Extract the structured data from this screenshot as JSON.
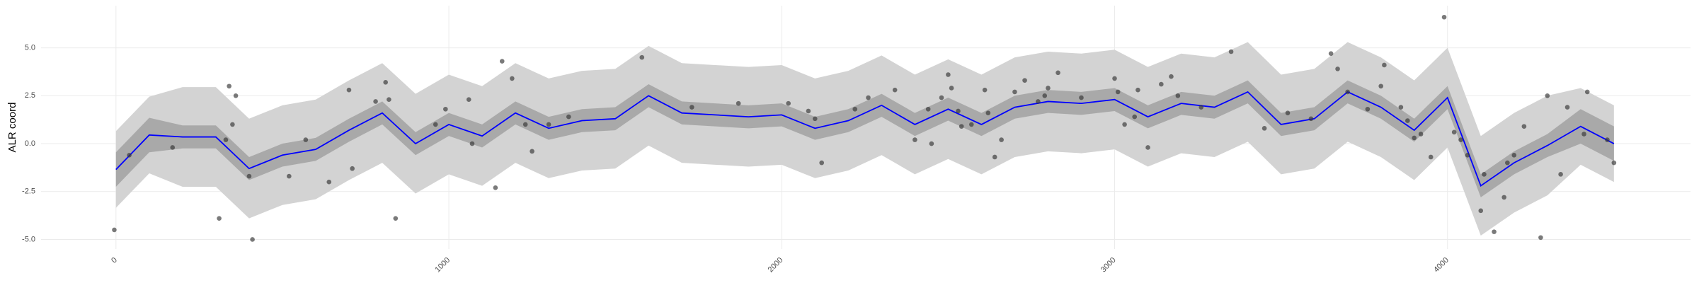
{
  "chart_data": {
    "type": "line",
    "y_label": "ALR coord",
    "xlim": [
      -225,
      4730
    ],
    "ylim": [
      -5.5,
      7.2
    ],
    "xticks": [
      0,
      1000,
      2000,
      3000,
      4000
    ],
    "yticks": [
      {
        "value": -5,
        "label": "-5.0"
      },
      {
        "value": -2.5,
        "label": "-2.5"
      },
      {
        "value": 0,
        "label": "0.0"
      },
      {
        "value": 2.5,
        "label": "2.5"
      },
      {
        "value": 5,
        "label": "5.0"
      }
    ],
    "grid": true,
    "x": [
      0,
      100,
      200,
      300,
      400,
      500,
      600,
      700,
      800,
      900,
      1000,
      1100,
      1200,
      1300,
      1400,
      1500,
      1600,
      1700,
      1800,
      1900,
      2000,
      2100,
      2200,
      2300,
      2400,
      2500,
      2600,
      2700,
      2800,
      2900,
      3000,
      3100,
      3200,
      3300,
      3400,
      3500,
      3600,
      3700,
      3800,
      3900,
      4000,
      4100,
      4200,
      4300,
      4400,
      4500
    ],
    "mean": {
      "color": "#0000ff",
      "values": [
        -1.35,
        0.45,
        0.35,
        0.35,
        -1.3,
        -0.6,
        -0.3,
        0.7,
        1.6,
        0.0,
        1.0,
        0.4,
        1.6,
        0.8,
        1.2,
        1.3,
        2.5,
        1.6,
        1.5,
        1.4,
        1.5,
        0.8,
        1.2,
        2.0,
        1.0,
        1.8,
        1.0,
        1.9,
        2.2,
        2.1,
        2.3,
        1.4,
        2.1,
        1.9,
        2.7,
        1.0,
        1.3,
        2.7,
        1.9,
        0.7,
        2.4,
        -2.2,
        -1.0,
        -0.1,
        0.9,
        0.0
      ]
    },
    "inner_band": {
      "color": "#a9a9a9",
      "lower": [
        -2.25,
        -0.45,
        -0.25,
        -0.25,
        -1.9,
        -1.2,
        -0.9,
        0.1,
        1.0,
        -0.6,
        0.4,
        -0.2,
        1.0,
        0.2,
        0.6,
        0.7,
        1.9,
        1.0,
        0.9,
        0.8,
        0.9,
        0.2,
        0.6,
        1.4,
        0.4,
        1.2,
        0.4,
        1.3,
        1.6,
        1.5,
        1.7,
        0.8,
        1.5,
        1.3,
        2.1,
        0.4,
        0.7,
        2.1,
        1.3,
        0.1,
        1.8,
        -2.8,
        -1.6,
        -0.7,
        0.0,
        -0.9
      ],
      "upper": [
        -0.45,
        1.35,
        0.95,
        0.95,
        -0.7,
        0.0,
        0.3,
        1.3,
        2.2,
        0.6,
        1.6,
        1.0,
        2.2,
        1.4,
        1.8,
        1.9,
        3.1,
        2.2,
        2.1,
        2.0,
        2.1,
        1.4,
        1.8,
        2.6,
        1.6,
        2.4,
        1.6,
        2.5,
        2.8,
        2.7,
        2.9,
        2.0,
        2.7,
        2.5,
        3.3,
        1.6,
        1.9,
        3.3,
        2.5,
        1.3,
        3.0,
        -1.6,
        -0.4,
        0.5,
        1.8,
        0.9
      ]
    },
    "outer_band": {
      "color": "#d3d3d3",
      "lower": [
        -3.35,
        -1.55,
        -2.25,
        -2.25,
        -3.9,
        -3.2,
        -2.9,
        -1.9,
        -1.0,
        -2.6,
        -1.6,
        -2.2,
        -1.0,
        -1.8,
        -1.4,
        -1.3,
        -0.1,
        -1.0,
        -1.1,
        -1.2,
        -1.1,
        -1.8,
        -1.4,
        -0.6,
        -1.6,
        -0.8,
        -1.6,
        -0.7,
        -0.4,
        -0.5,
        -0.3,
        -1.2,
        -0.5,
        -0.7,
        0.1,
        -1.6,
        -1.3,
        0.1,
        -0.7,
        -1.9,
        -0.2,
        -4.8,
        -3.6,
        -2.7,
        -1.1,
        -2.0
      ],
      "upper": [
        0.65,
        2.45,
        2.95,
        2.95,
        1.3,
        2.0,
        2.3,
        3.3,
        4.2,
        2.6,
        3.6,
        3.0,
        4.2,
        3.4,
        3.8,
        3.9,
        5.1,
        4.2,
        4.1,
        4.0,
        4.1,
        3.4,
        3.8,
        4.6,
        3.6,
        4.4,
        3.6,
        4.5,
        4.8,
        4.7,
        4.9,
        4.0,
        4.7,
        4.5,
        5.3,
        3.6,
        3.9,
        5.3,
        4.5,
        3.3,
        5.0,
        0.4,
        1.6,
        2.5,
        2.9,
        2.0
      ]
    },
    "points": {
      "color": "#333333",
      "x": [
        -5,
        40,
        170,
        310,
        330,
        340,
        350,
        360,
        400,
        410,
        520,
        570,
        640,
        700,
        710,
        780,
        810,
        820,
        840,
        960,
        990,
        1060,
        1070,
        1140,
        1160,
        1190,
        1230,
        1250,
        1300,
        1360,
        1580,
        1730,
        1870,
        2020,
        2080,
        2100,
        2120,
        2220,
        2260,
        2340,
        2400,
        2450,
        2440,
        2480,
        2500,
        2510,
        2530,
        2540,
        2570,
        2610,
        2620,
        2640,
        2660,
        2700,
        2730,
        2770,
        2790,
        2800,
        2830,
        2900,
        3000,
        3010,
        3030,
        3060,
        3070,
        3100,
        3140,
        3170,
        3190,
        3260,
        3350,
        3450,
        3520,
        3590,
        3650,
        3670,
        3700,
        3760,
        3800,
        3810,
        3860,
        3880,
        3900,
        3920,
        3950,
        3990,
        4020,
        4040,
        4060,
        4100,
        4110,
        4140,
        4170,
        4180,
        4200,
        4230,
        4280,
        4300,
        4340,
        4360,
        4420,
        4410,
        4480,
        4500
      ],
      "y": [
        -4.5,
        -0.6,
        -0.2,
        -3.9,
        0.2,
        3.0,
        1.0,
        2.5,
        -1.7,
        -5.0,
        -1.7,
        0.2,
        -2.0,
        2.8,
        -1.3,
        2.2,
        3.2,
        2.3,
        -3.9,
        1.0,
        1.8,
        2.3,
        0.0,
        -2.3,
        4.3,
        3.4,
        1.0,
        -0.4,
        1.0,
        1.4,
        4.5,
        1.9,
        2.1,
        2.1,
        1.7,
        1.3,
        -1.0,
        1.8,
        2.4,
        2.8,
        0.2,
        0.0,
        1.8,
        2.4,
        3.6,
        2.9,
        1.7,
        0.9,
        1.0,
        2.8,
        1.6,
        -0.7,
        0.2,
        2.7,
        3.3,
        2.2,
        2.5,
        2.9,
        3.7,
        2.4,
        3.4,
        2.7,
        1.0,
        1.4,
        2.8,
        -0.2,
        3.1,
        3.5,
        2.5,
        1.9,
        4.8,
        0.8,
        1.6,
        1.3,
        4.7,
        3.9,
        2.7,
        1.8,
        3.0,
        4.1,
        1.9,
        1.2,
        0.3,
        0.5,
        -0.7,
        6.6,
        0.6,
        0.2,
        -0.6,
        -3.5,
        -1.6,
        -4.6,
        -2.8,
        -1.0,
        -0.6,
        0.9,
        -4.9,
        2.5,
        -1.6,
        1.9,
        2.7,
        0.5,
        0.2,
        -1.0
      ]
    }
  }
}
